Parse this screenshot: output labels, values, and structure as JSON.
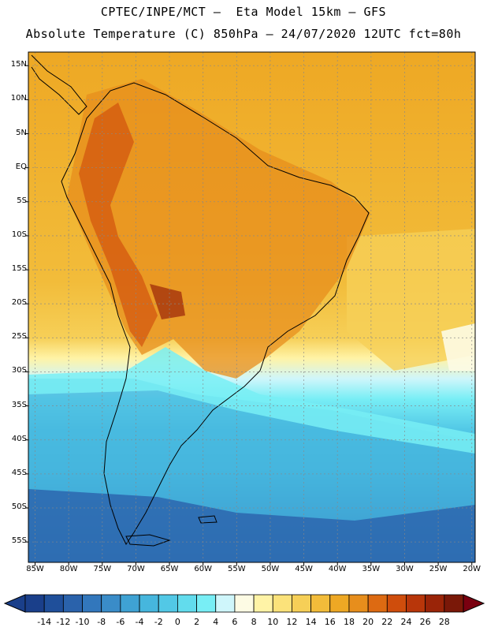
{
  "header": {
    "title_line1": "CPTEC/INPE/MCT –  Eta Model 15km – GFS",
    "title_line2": "Absolute Temperature (C) 850hPa – 24/07/2020 12UTC fct=80h"
  },
  "map": {
    "region": "South America",
    "lon_range": [
      -86,
      -19.5
    ],
    "lat_range": [
      17,
      -58
    ],
    "lat_labels": [
      "15N",
      "10N",
      "5N",
      "EQ",
      "5S",
      "10S",
      "15S",
      "20S",
      "25S",
      "30S",
      "35S",
      "40S",
      "45S",
      "50S",
      "55S"
    ],
    "lat_values": [
      15,
      10,
      5,
      0,
      -5,
      -10,
      -15,
      -20,
      -25,
      -30,
      -35,
      -40,
      -45,
      -50,
      -55
    ],
    "lon_labels": [
      "85W",
      "80W",
      "75W",
      "70W",
      "65W",
      "60W",
      "55W",
      "50W",
      "45W",
      "40W",
      "35W",
      "30W",
      "25W",
      "20W"
    ],
    "lon_values": [
      -85,
      -80,
      -75,
      -70,
      -65,
      -60,
      -55,
      -50,
      -45,
      -40,
      -35,
      -30,
      -25,
      -20
    ]
  },
  "colorbar": {
    "labels": [
      "-14",
      "-12",
      "-10",
      "-8",
      "-6",
      "-4",
      "-2",
      "0",
      "2",
      "4",
      "6",
      "8",
      "10",
      "12",
      "14",
      "16",
      "18",
      "20",
      "22",
      "24",
      "26",
      "28"
    ],
    "colors": [
      "#1a3f8a",
      "#1f4f9a",
      "#2a62ab",
      "#3277bc",
      "#3a8cc8",
      "#3fa2d3",
      "#46b6dd",
      "#52c8e6",
      "#62dced",
      "#78eef5",
      "#cff6fb",
      "#fdfbe4",
      "#fff3a6",
      "#fbe27a",
      "#f6cf57",
      "#f2bc3a",
      "#eea824",
      "#e78e1c",
      "#dd6a12",
      "#cf4d0c",
      "#b8360a",
      "#9a2408",
      "#7a1808"
    ]
  }
}
